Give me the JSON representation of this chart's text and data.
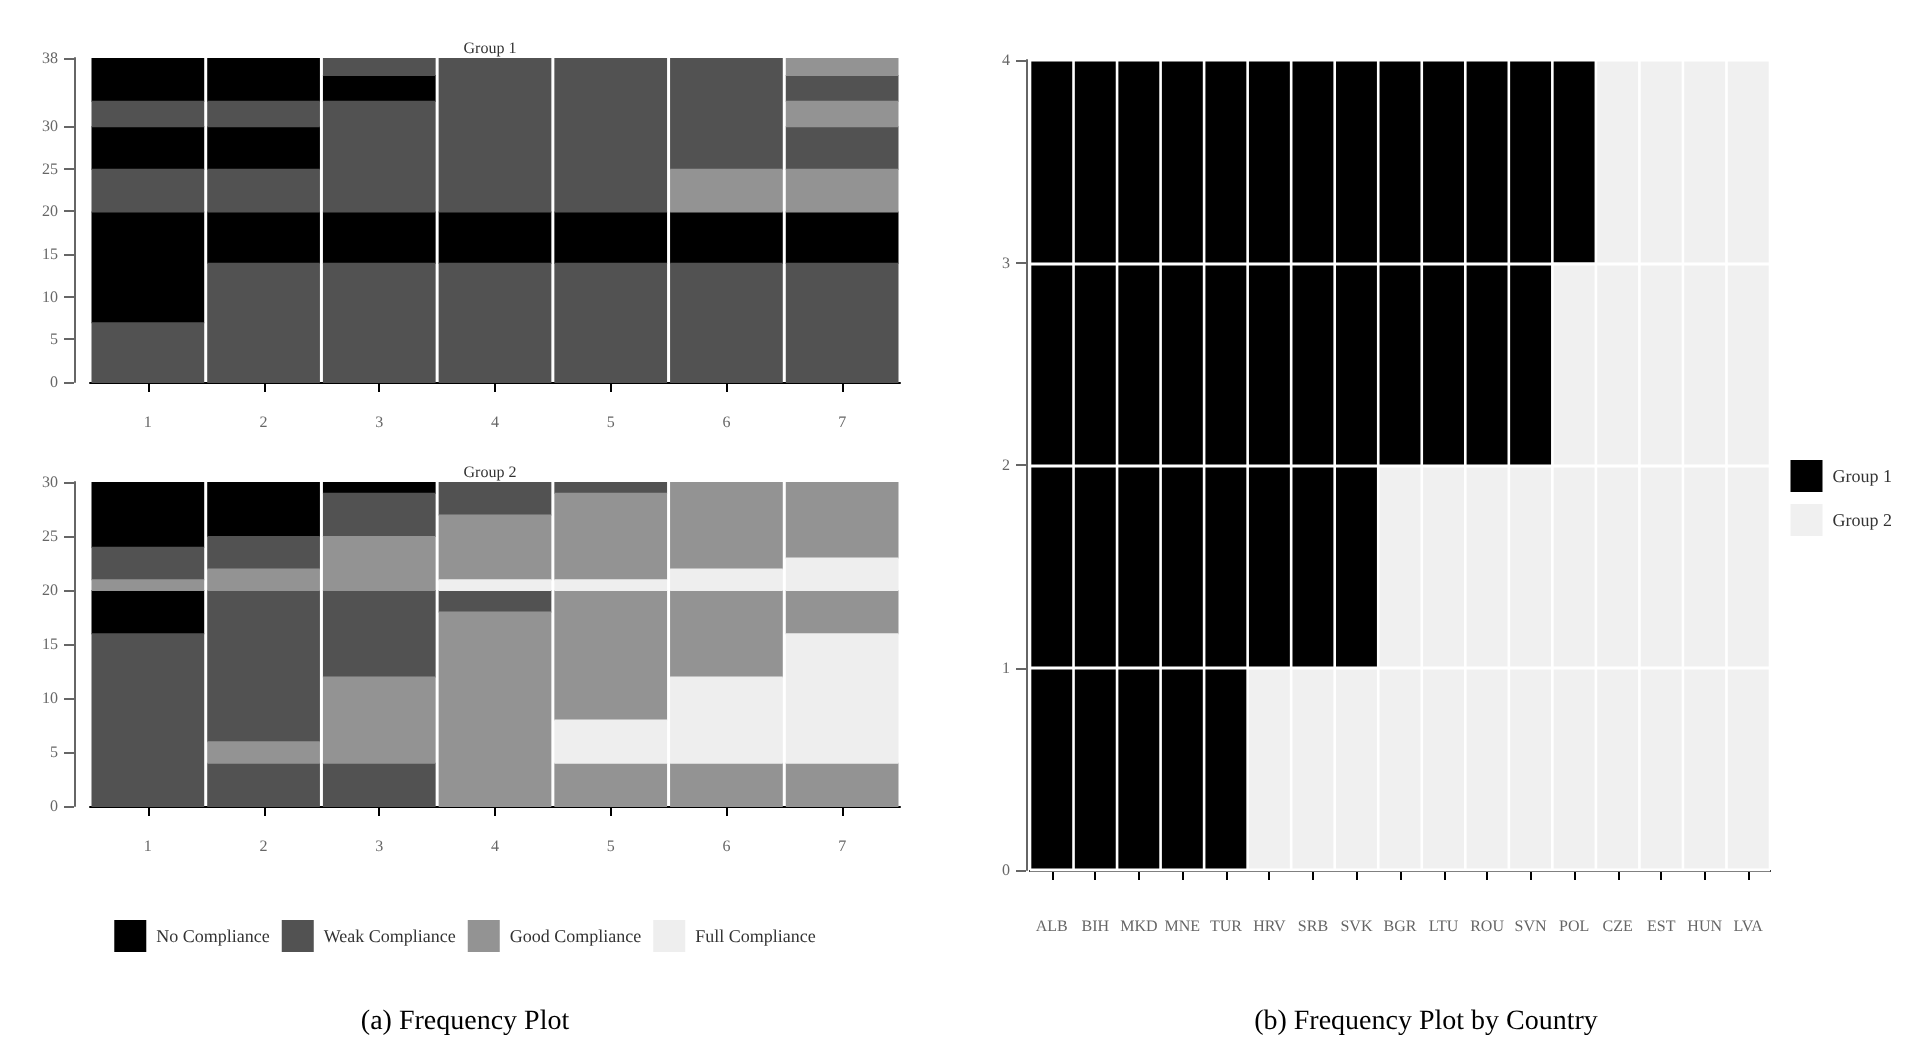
{
  "chart_data": [
    {
      "type": "bar",
      "title": "Group 1",
      "categories": [
        "1",
        "2",
        "3",
        "4",
        "5",
        "6",
        "7"
      ],
      "ylim": [
        0,
        38
      ],
      "yticks": [
        0,
        5,
        10,
        15,
        20,
        25,
        30,
        38
      ],
      "series": [
        {
          "color": "#000000",
          "base": [
            7,
            14,
            14,
            14,
            14,
            14,
            14
          ],
          "values": [
            13,
            6,
            6,
            6,
            6,
            6,
            6
          ]
        },
        {
          "color": "#000000",
          "base": [
            25,
            25,
            33,
            null,
            null,
            null,
            null
          ],
          "values": [
            5,
            5,
            3,
            null,
            null,
            null,
            null
          ]
        },
        {
          "color": "#000000",
          "base": [
            33,
            33,
            null,
            null,
            null,
            null,
            null
          ],
          "values": [
            5,
            5,
            null,
            null,
            null,
            null,
            null
          ]
        },
        {
          "color": "#525252",
          "base": [
            0,
            0,
            0,
            0,
            0,
            0,
            0
          ],
          "values": [
            7,
            14,
            14,
            14,
            14,
            14,
            14
          ]
        },
        {
          "color": "#525252",
          "base": [
            20,
            20,
            20,
            20,
            20,
            25,
            25
          ],
          "values": [
            5,
            5,
            13,
            18,
            18,
            13,
            5
          ]
        },
        {
          "color": "#525252",
          "base": [
            30,
            30,
            36,
            null,
            null,
            null,
            33
          ],
          "values": [
            3,
            3,
            2,
            null,
            null,
            null,
            3
          ]
        },
        {
          "color": "#939393",
          "base": [
            null,
            null,
            null,
            null,
            null,
            20,
            20
          ],
          "values": [
            null,
            null,
            null,
            null,
            null,
            5,
            5
          ]
        },
        {
          "color": "#939393",
          "base": [
            null,
            null,
            null,
            null,
            null,
            null,
            30
          ],
          "values": [
            null,
            null,
            null,
            null,
            null,
            null,
            3
          ]
        },
        {
          "color": "#939393",
          "base": [
            null,
            null,
            null,
            null,
            null,
            null,
            36
          ],
          "values": [
            null,
            null,
            null,
            null,
            null,
            null,
            2
          ]
        }
      ]
    },
    {
      "type": "bar",
      "title": "Group 2",
      "categories": [
        "1",
        "2",
        "3",
        "4",
        "5",
        "6",
        "7"
      ],
      "ylim": [
        0,
        30
      ],
      "yticks": [
        0,
        5,
        10,
        15,
        20,
        25,
        30
      ],
      "legend": "bottom",
      "annotations": [
        "(a) Frequency Plot"
      ],
      "series": [
        {
          "name": "No Compliance",
          "color": "#000000",
          "base": [
            16,
            25,
            29,
            null,
            null,
            null,
            null
          ],
          "values": [
            4,
            5,
            1,
            null,
            null,
            null,
            null
          ]
        },
        {
          "color": "#000000",
          "base": [
            24,
            null,
            null,
            null,
            null,
            null,
            null
          ],
          "values": [
            6,
            null,
            null,
            null,
            null,
            null,
            null
          ]
        },
        {
          "name": "Weak Compliance",
          "color": "#525252",
          "base": [
            0,
            0,
            0,
            18,
            29,
            null,
            null
          ],
          "values": [
            16,
            4,
            4,
            2,
            1,
            null,
            null
          ]
        },
        {
          "color": "#525252",
          "base": [
            21,
            6,
            12,
            27,
            null,
            null,
            null
          ],
          "values": [
            3,
            14,
            8,
            3,
            null,
            null,
            null
          ]
        },
        {
          "color": "#525252",
          "base": [
            null,
            22,
            25,
            null,
            null,
            null,
            null
          ],
          "values": [
            null,
            3,
            4,
            null,
            null,
            null,
            null
          ]
        },
        {
          "name": "Good Compliance",
          "color": "#939393",
          "base": [
            20,
            4,
            4,
            0,
            0,
            0,
            0
          ],
          "values": [
            1,
            2,
            8,
            18,
            4,
            4,
            4
          ]
        },
        {
          "color": "#939393",
          "base": [
            null,
            20,
            20,
            21,
            8,
            12,
            16
          ],
          "values": [
            null,
            2,
            5,
            6,
            12,
            8,
            4
          ]
        },
        {
          "color": "#939393",
          "base": [
            null,
            null,
            null,
            null,
            21,
            22,
            23
          ],
          "values": [
            null,
            null,
            null,
            null,
            8,
            8,
            7
          ]
        },
        {
          "name": "Full Compliance",
          "color": "#eeeeee",
          "base": [
            null,
            null,
            null,
            20,
            4,
            4,
            4
          ],
          "values": [
            null,
            null,
            null,
            1,
            4,
            8,
            12
          ]
        },
        {
          "color": "#eeeeee",
          "base": [
            null,
            null,
            null,
            null,
            20,
            20,
            20
          ],
          "values": [
            null,
            null,
            null,
            null,
            1,
            2,
            3
          ]
        }
      ]
    },
    {
      "type": "bar",
      "stacked": true,
      "categories": [
        "ALB",
        "BIH",
        "MKD",
        "MNE",
        "TUR",
        "HRV",
        "SRB",
        "SVK",
        "BGR",
        "LTU",
        "ROU",
        "SVN",
        "POL",
        "CZE",
        "EST",
        "HUN",
        "LVA"
      ],
      "ylim": [
        0,
        4
      ],
      "yticks": [
        0,
        1,
        2,
        3,
        4
      ],
      "grid": "y",
      "legend": "right",
      "annotations": [
        "(b) Frequency Plot by Country"
      ],
      "series": [
        {
          "name": "Group 2",
          "color": "#f0f0f0",
          "values": [
            0,
            0,
            0,
            0,
            0,
            1,
            1,
            1,
            2,
            2,
            2,
            2,
            3,
            4,
            4,
            4,
            4
          ]
        },
        {
          "name": "Group 1",
          "color": "#000000",
          "values": [
            4,
            4,
            4,
            4,
            4,
            3,
            3,
            3,
            2,
            2,
            2,
            2,
            1,
            0,
            0,
            0,
            0
          ]
        }
      ]
    }
  ]
}
